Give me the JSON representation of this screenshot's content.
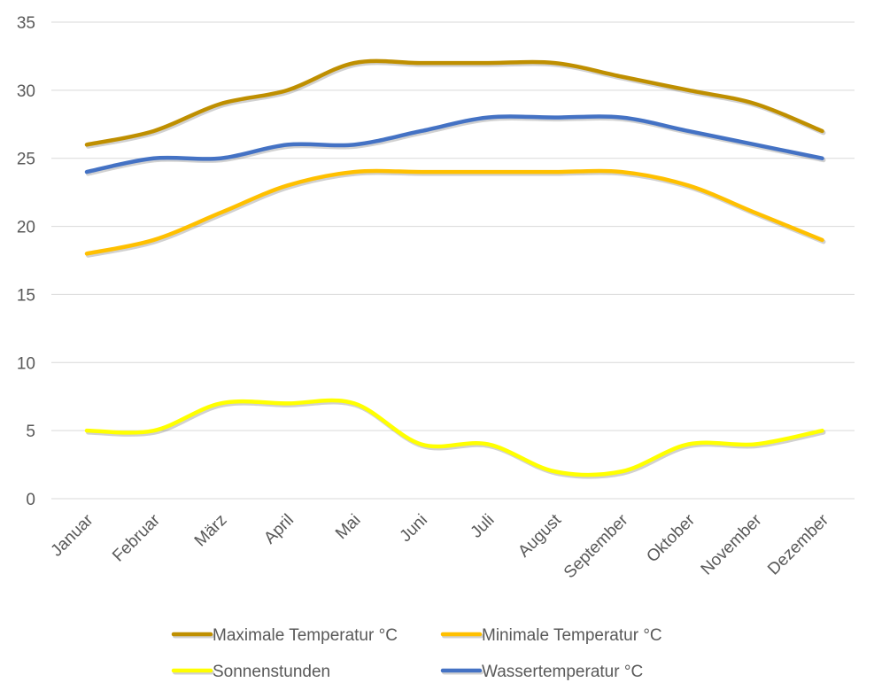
{
  "chart_data": {
    "type": "line",
    "categories": [
      "Januar",
      "Februar",
      "März",
      "April",
      "Mai",
      "Juni",
      "Juli",
      "August",
      "September",
      "Oktober",
      "November",
      "Dezember"
    ],
    "series": [
      {
        "name": "Maximale Temperatur °C",
        "color": "#BF8F00",
        "values": [
          26,
          27,
          29,
          30,
          32,
          32,
          32,
          32,
          31,
          30,
          29,
          27
        ]
      },
      {
        "name": "Minimale Temperatur °C",
        "color": "#FFC000",
        "values": [
          18,
          19,
          21,
          23,
          24,
          24,
          24,
          24,
          24,
          23,
          21,
          19
        ]
      },
      {
        "name": "Sonnenstunden",
        "color": "#FFFF00",
        "values": [
          5,
          5,
          7,
          7,
          7,
          4,
          4,
          2,
          2,
          4,
          4,
          5
        ]
      },
      {
        "name": "Wassertemperatur °C",
        "color": "#4472C4",
        "values": [
          24,
          25,
          25,
          26,
          26,
          27,
          28,
          28,
          28,
          27,
          26,
          25
        ]
      }
    ],
    "yticks": [
      0,
      5,
      10,
      15,
      20,
      25,
      30,
      35
    ],
    "ylim": [
      0,
      35
    ],
    "grid": true,
    "legend_position": "bottom",
    "smooth": true
  }
}
